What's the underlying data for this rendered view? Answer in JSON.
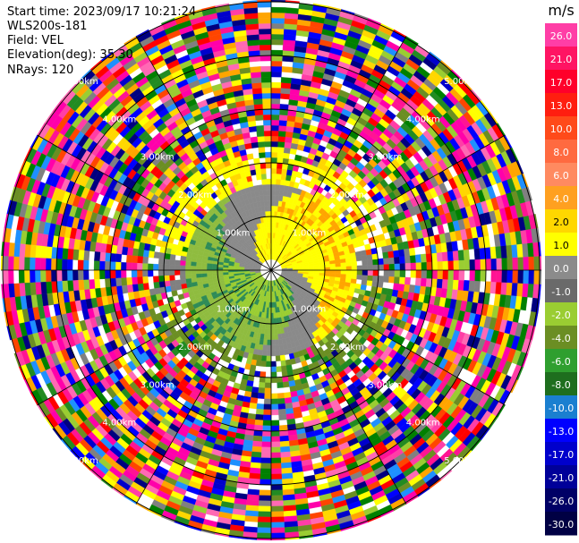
{
  "header": {
    "start_time": "Start time: 2023/09/17 10:21:24",
    "instrument": "WLS200s-181",
    "field": "Field: VEL",
    "elevation": "Elevation(deg): 35.30",
    "nrays": "NRays: 120"
  },
  "chart_data": {
    "type": "heatmap",
    "projection": "polar-ppi",
    "field": "VEL",
    "unit": "m/s",
    "n_rays": 120,
    "range_rings_km": [
      1,
      2,
      3,
      4,
      5
    ],
    "max_range_km": 5.2,
    "range_ring_labels": [
      "1.00km",
      "2.00km",
      "3.00km",
      "4.00km",
      "5.00km"
    ],
    "colorbar": {
      "label": "m/s",
      "vmin": -30.0,
      "vmax": 30.0,
      "tick_labels": [
        "26.0",
        "21.0",
        "17.0",
        "13.0",
        "10.0",
        "8.0",
        "6.0",
        "4.0",
        "2.0",
        "1.0",
        "0.0",
        "-1.0",
        "-2.0",
        "-4.0",
        "-6.0",
        "-8.0",
        "-10.0",
        "-13.0",
        "-17.0",
        "-21.0",
        "-26.0",
        "-30.0"
      ],
      "colors_top_to_bottom": [
        "#ff3ea6",
        "#ff1463",
        "#ff002a",
        "#ff1e10",
        "#ff4a1a",
        "#ff6a40",
        "#ff8a60",
        "#ffa020",
        "#ffd700",
        "#ffff00",
        "#8b8b8b",
        "#6a6a6a",
        "#9acd32",
        "#6b8e23",
        "#2f9f2f",
        "#1e6e1e",
        "#1a7fd0",
        "#0000ff",
        "#0000cc",
        "#000099",
        "#000066",
        "#000044"
      ]
    },
    "near_range_pattern": {
      "approach_sector_deg": [
        120,
        300
      ],
      "approach_colors": [
        "olive-green",
        "green"
      ],
      "recede_sector_deg": [
        300,
        120
      ],
      "recede_colors": [
        "yellow",
        "orange"
      ],
      "zero_band_colors": [
        "gray"
      ]
    },
    "far_range": "noise"
  }
}
